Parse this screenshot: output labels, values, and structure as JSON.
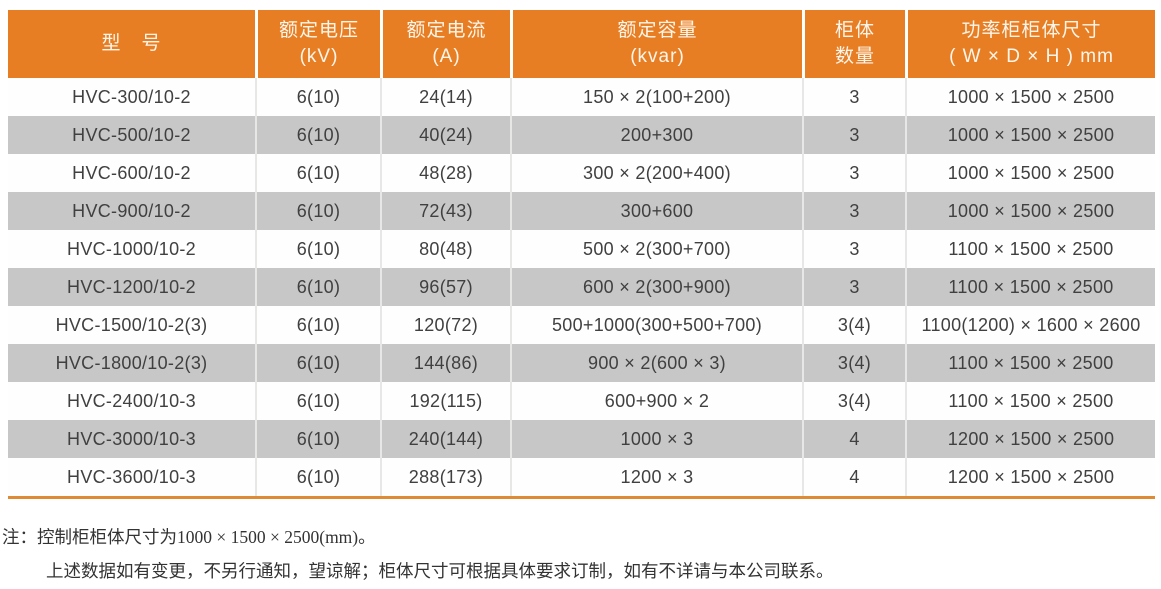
{
  "colors": {
    "header_bg": "#E87E23",
    "header_separator": "#FFFFFF",
    "row_alt_bg": "#C7C7C7",
    "row_bg": "#FEFEFE",
    "cell_separator": "#E7E7E5",
    "bottom_border": "#DF8B35",
    "header_text": "#FDF6EC",
    "body_text": "#404040",
    "note_text": "#333333"
  },
  "table": {
    "headers": [
      {
        "line1": "型　号",
        "line2": ""
      },
      {
        "line1": "额定电压",
        "line2": "(kV)"
      },
      {
        "line1": "额定电流",
        "line2": "(A)"
      },
      {
        "line1": "额定容量",
        "line2": "(kvar)"
      },
      {
        "line1": "柜体",
        "line2": "数量"
      },
      {
        "line1": "功率柜柜体尺寸",
        "line2": "( W × D × H ) mm"
      }
    ],
    "rows": [
      [
        "HVC-300/10-2",
        "6(10)",
        "24(14)",
        "150 × 2(100+200)",
        "3",
        "1000 × 1500 × 2500"
      ],
      [
        "HVC-500/10-2",
        "6(10)",
        "40(24)",
        "200+300",
        "3",
        "1000 × 1500 × 2500"
      ],
      [
        "HVC-600/10-2",
        "6(10)",
        "48(28)",
        "300 × 2(200+400)",
        "3",
        "1000 × 1500 × 2500"
      ],
      [
        "HVC-900/10-2",
        "6(10)",
        "72(43)",
        "300+600",
        "3",
        "1000 × 1500 × 2500"
      ],
      [
        "HVC-1000/10-2",
        "6(10)",
        "80(48)",
        "500 × 2(300+700)",
        "3",
        "1100 × 1500 × 2500"
      ],
      [
        "HVC-1200/10-2",
        "6(10)",
        "96(57)",
        "600 × 2(300+900)",
        "3",
        "1100 × 1500 × 2500"
      ],
      [
        "HVC-1500/10-2(3)",
        "6(10)",
        "120(72)",
        "500+1000(300+500+700)",
        "3(4)",
        "1100(1200) × 1600 × 2600"
      ],
      [
        "HVC-1800/10-2(3)",
        "6(10)",
        "144(86)",
        "900 × 2(600 × 3)",
        "3(4)",
        "1100 × 1500 × 2500"
      ],
      [
        "HVC-2400/10-3",
        "6(10)",
        "192(115)",
        "600+900 × 2",
        "3(4)",
        "1100 × 1500 × 2500"
      ],
      [
        "HVC-3000/10-3",
        "6(10)",
        "240(144)",
        "1000 × 3",
        "4",
        "1200 × 1500 × 2500"
      ],
      [
        "HVC-3600/10-3",
        "6(10)",
        "288(173)",
        "1200 × 3",
        "4",
        "1200 × 1500 × 2500"
      ]
    ]
  },
  "notes": {
    "line1": "注：控制柜柜体尺寸为1000 × 1500 × 2500(mm)。",
    "line2": "上述数据如有变更，不另行通知，望谅解；柜体尺寸可根据具体要求订制，如有不详请与本公司联系。"
  }
}
